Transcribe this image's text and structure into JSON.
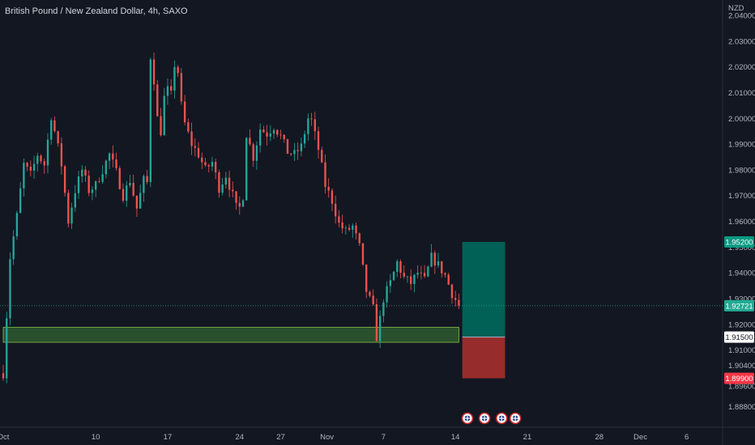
{
  "header": {
    "symbol_title": "British Pound / New Zealand Dollar, 4h, SAXO"
  },
  "chart_data": {
    "type": "candlestick",
    "currency": "NZD",
    "ylim": [
      1.88,
      2.046
    ],
    "y_ticks": [
      {
        "value": 2.04,
        "label": "2.04000"
      },
      {
        "value": 2.03,
        "label": "2.03000"
      },
      {
        "value": 2.02,
        "label": "2.02000"
      },
      {
        "value": 2.01,
        "label": "2.01000"
      },
      {
        "value": 2.0,
        "label": "2.00000"
      },
      {
        "value": 1.99,
        "label": "1.99000"
      },
      {
        "value": 1.98,
        "label": "1.98000"
      },
      {
        "value": 1.97,
        "label": "1.97000"
      },
      {
        "value": 1.96,
        "label": "1.96000"
      },
      {
        "value": 1.95,
        "label": "1.95000"
      },
      {
        "value": 1.94,
        "label": "1.94000"
      },
      {
        "value": 1.93,
        "label": "1.93000"
      },
      {
        "value": 1.92,
        "label": "1.92000"
      },
      {
        "value": 1.91,
        "label": "1.91000"
      },
      {
        "value": 1.904,
        "label": "1.90400"
      },
      {
        "value": 1.896,
        "label": "1.89600"
      },
      {
        "value": 1.888,
        "label": "1.88800"
      }
    ],
    "x_ticks": [
      {
        "index": 0,
        "label": "Oct"
      },
      {
        "index": 54,
        "label": "10"
      },
      {
        "index": 96,
        "label": "17"
      },
      {
        "index": 138,
        "label": "24"
      },
      {
        "index": 162,
        "label": "27"
      },
      {
        "index": 189,
        "label": "Nov"
      },
      {
        "index": 222,
        "label": "7"
      },
      {
        "index": 264,
        "label": "14"
      },
      {
        "index": 306,
        "label": "21"
      },
      {
        "index": 348,
        "label": "28"
      },
      {
        "index": 372,
        "label": "Dec"
      },
      {
        "index": 399,
        "label": "6"
      }
    ],
    "x_domain": [
      0,
      420
    ],
    "anchors": [
      [
        0,
        1.901
      ],
      [
        4,
        1.946
      ],
      [
        8,
        1.962
      ],
      [
        12,
        1.982
      ],
      [
        16,
        1.978
      ],
      [
        20,
        1.986
      ],
      [
        24,
        1.982
      ],
      [
        28,
        2.001
      ],
      [
        31,
        1.992
      ],
      [
        34,
        1.982
      ],
      [
        38,
        1.96
      ],
      [
        42,
        1.972
      ],
      [
        46,
        1.98
      ],
      [
        50,
        1.972
      ],
      [
        54,
        1.974
      ],
      [
        58,
        1.98
      ],
      [
        62,
        1.986
      ],
      [
        66,
        1.979
      ],
      [
        70,
        1.97
      ],
      [
        74,
        1.976
      ],
      [
        78,
        1.965
      ],
      [
        82,
        1.976
      ],
      [
        84,
        1.975
      ],
      [
        86,
        2.024
      ],
      [
        88,
        2.015
      ],
      [
        90,
        2.0
      ],
      [
        92,
        1.995
      ],
      [
        94,
        2.008
      ],
      [
        96,
        2.011
      ],
      [
        98,
        2.009
      ],
      [
        100,
        2.021
      ],
      [
        102,
        2.018
      ],
      [
        104,
        2.005
      ],
      [
        106,
        1.998
      ],
      [
        110,
        1.99
      ],
      [
        114,
        1.986
      ],
      [
        118,
        1.98
      ],
      [
        122,
        1.983
      ],
      [
        126,
        1.973
      ],
      [
        130,
        1.978
      ],
      [
        134,
        1.97
      ],
      [
        137,
        1.963
      ],
      [
        140,
        1.97
      ],
      [
        142,
        1.994
      ],
      [
        146,
        1.985
      ],
      [
        150,
        1.996
      ],
      [
        154,
        1.994
      ],
      [
        158,
        1.997
      ],
      [
        162,
        1.993
      ],
      [
        166,
        1.987
      ],
      [
        170,
        1.986
      ],
      [
        174,
        1.989
      ],
      [
        178,
        2.0
      ],
      [
        180,
        1.999
      ],
      [
        184,
        1.988
      ],
      [
        188,
        1.974
      ],
      [
        192,
        1.968
      ],
      [
        196,
        1.959
      ],
      [
        200,
        1.956
      ],
      [
        204,
        1.958
      ],
      [
        208,
        1.95
      ],
      [
        212,
        1.933
      ],
      [
        216,
        1.926
      ],
      [
        218,
        1.915
      ],
      [
        220,
        1.922
      ],
      [
        222,
        1.93
      ],
      [
        226,
        1.936
      ],
      [
        230,
        1.944
      ],
      [
        234,
        1.938
      ],
      [
        238,
        1.936
      ],
      [
        242,
        1.94
      ],
      [
        246,
        1.937
      ],
      [
        250,
        1.946
      ],
      [
        254,
        1.943
      ],
      [
        258,
        1.939
      ],
      [
        262,
        1.932
      ],
      [
        266,
        1.9272
      ]
    ],
    "last_price": 1.92721,
    "demand_zone": {
      "from_index": 0,
      "to_index": 266,
      "top": 1.9188,
      "bottom": 1.913
    },
    "position": {
      "type": "long",
      "from_index": 268,
      "to_index": 293,
      "take_profit": 1.952,
      "entry": 1.915,
      "stop_loss": 1.899
    },
    "price_badges": [
      {
        "value": 1.952,
        "label": "1.95200",
        "bg": "#089981",
        "fg": "#ffffff"
      },
      {
        "value": 1.92721,
        "label": "1.92721",
        "bg": "#22ab94",
        "fg": "#ffffff"
      },
      {
        "value": 1.915,
        "label": "1.91500",
        "bg": "#ffffff",
        "fg": "#131722"
      },
      {
        "value": 1.899,
        "label": "1.89900",
        "bg": "#f23645",
        "fg": "#ffffff"
      }
    ],
    "event_markers": [
      {
        "index": 271
      },
      {
        "index": 281
      },
      {
        "index": 291
      },
      {
        "index": 299
      }
    ],
    "colors": {
      "background": "#131722",
      "up": "#26a69a",
      "down": "#ef5350",
      "axis_text": "#b2b5be",
      "zone_fill": "#2e5a2e",
      "tp_fill": "#00695c",
      "sl_fill": "#a52f2c"
    }
  }
}
